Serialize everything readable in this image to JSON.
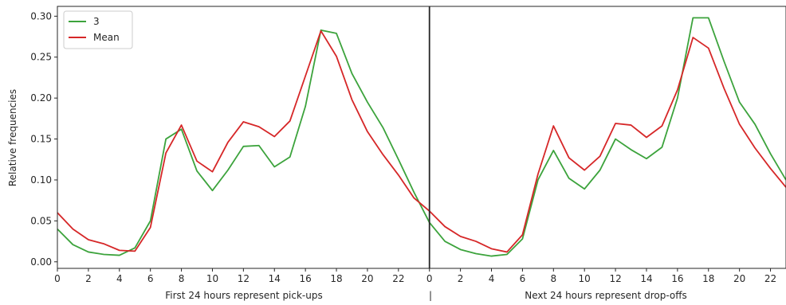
{
  "chart_data": {
    "type": "line",
    "x_ticks": [
      "0",
      "2",
      "4",
      "6",
      "8",
      "10",
      "12",
      "14",
      "16",
      "18",
      "20",
      "22",
      "0",
      "2",
      "4",
      "6",
      "8",
      "10",
      "12",
      "14",
      "16",
      "18",
      "20",
      "22"
    ],
    "x_tick_values": [
      0,
      2,
      4,
      6,
      8,
      10,
      12,
      14,
      16,
      18,
      20,
      22,
      24,
      26,
      28,
      30,
      32,
      34,
      36,
      38,
      40,
      42,
      44,
      46
    ],
    "xlim": [
      0,
      47
    ],
    "ylim": [
      -0.008,
      0.312
    ],
    "y_ticks": [
      "0.00",
      "0.05",
      "0.10",
      "0.15",
      "0.20",
      "0.25",
      "0.30"
    ],
    "y_tick_values": [
      0,
      0.05,
      0.1,
      0.15,
      0.2,
      0.25,
      0.3
    ],
    "ylabel": "Relative frequencies",
    "xlabel_left": "First 24 hours represent pick-ups",
    "xlabel_mid": "|",
    "xlabel_right": "Next 24 hours represent drop-offs",
    "divider_x": 24,
    "legend_position": "top-left",
    "series": [
      {
        "name": "3",
        "color": "#3ca33c",
        "values": [
          0.04,
          0.021,
          0.012,
          0.009,
          0.008,
          0.017,
          0.05,
          0.15,
          0.162,
          0.111,
          0.087,
          0.112,
          0.141,
          0.142,
          0.116,
          0.128,
          0.19,
          0.283,
          0.279,
          0.23,
          0.195,
          0.164,
          0.125,
          0.085,
          0.048,
          0.025,
          0.015,
          0.01,
          0.007,
          0.009,
          0.028,
          0.1,
          0.136,
          0.102,
          0.089,
          0.112,
          0.15,
          0.137,
          0.126,
          0.14,
          0.2,
          0.298,
          0.298,
          0.245,
          0.195,
          0.168,
          0.132,
          0.1
        ]
      },
      {
        "name": "Mean",
        "color": "#d62728",
        "values": [
          0.06,
          0.04,
          0.027,
          0.022,
          0.014,
          0.013,
          0.042,
          0.133,
          0.167,
          0.123,
          0.11,
          0.146,
          0.171,
          0.165,
          0.153,
          0.172,
          0.227,
          0.282,
          0.251,
          0.198,
          0.159,
          0.131,
          0.106,
          0.078,
          0.062,
          0.043,
          0.031,
          0.025,
          0.016,
          0.012,
          0.033,
          0.107,
          0.166,
          0.127,
          0.112,
          0.129,
          0.169,
          0.167,
          0.152,
          0.166,
          0.21,
          0.274,
          0.261,
          0.212,
          0.168,
          0.139,
          0.114,
          0.091
        ]
      }
    ]
  }
}
